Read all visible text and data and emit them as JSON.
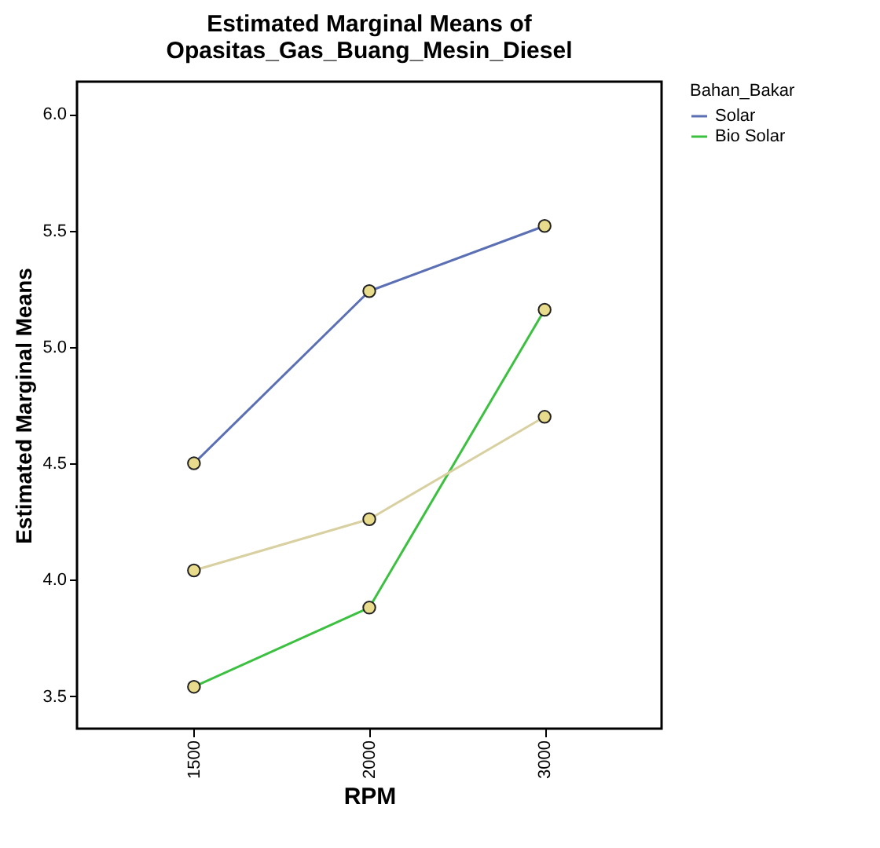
{
  "chart_data": {
    "type": "line",
    "title": "Estimated Marginal Means of Opasitas_Gas_Buang_Mesin_Diesel",
    "xlabel": "RPM",
    "ylabel": "Estimated Marginal Means",
    "legend_title": "Bahan_Bakar",
    "categories": [
      "1500",
      "2000",
      "3000"
    ],
    "series": [
      {
        "name": "Solar",
        "color": "#5b6fb5",
        "values": [
          4.5,
          5.24,
          5.52
        ]
      },
      {
        "name": "Bio Solar",
        "color": "#3cc040",
        "values": [
          3.54,
          3.88,
          5.16
        ]
      },
      {
        "color": "#d8d0a0",
        "values": [
          4.04,
          4.26,
          4.7
        ]
      }
    ],
    "ylim": [
      3.36,
      6.14
    ],
    "yticks": [
      {
        "value": 3.5,
        "label": "3.5"
      },
      {
        "value": 4.0,
        "label": "4.0"
      },
      {
        "value": 4.5,
        "label": "4.5"
      },
      {
        "value": 5.0,
        "label": "5.0"
      },
      {
        "value": 5.5,
        "label": "5.5"
      },
      {
        "value": 6.0,
        "label": "6.0"
      }
    ],
    "grid": false,
    "legend": "right",
    "marker": "circle",
    "line_style": "solid"
  }
}
